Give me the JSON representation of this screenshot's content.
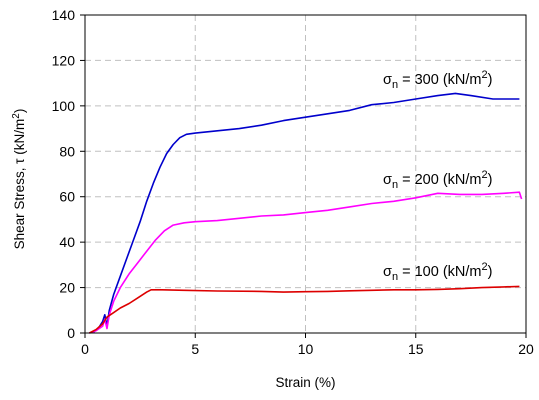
{
  "chart_data": {
    "type": "line",
    "xlabel": "Strain (%)",
    "ylabel_prefix": "Shear Stress, ",
    "ylabel_symbol": "τ",
    "ylabel_unit_open": " (kN/m",
    "ylabel_unit_exp": "2",
    "ylabel_unit_close": ")",
    "xlim": [
      0,
      20
    ],
    "ylim": [
      0,
      140
    ],
    "xticks": [
      0,
      5,
      10,
      15,
      20
    ],
    "yticks": [
      0,
      20,
      40,
      60,
      80,
      100,
      120,
      140
    ],
    "grid": true,
    "series": [
      {
        "color": "#0000cc",
        "label": {
          "sigma": "σ",
          "sub": "n",
          "text": " = 300 (kN/m",
          "sup": "2",
          "close": ")"
        },
        "points": [
          [
            0.2,
            0
          ],
          [
            0.4,
            0.5
          ],
          [
            0.6,
            2
          ],
          [
            0.8,
            5
          ],
          [
            0.9,
            8
          ],
          [
            1.0,
            3
          ],
          [
            1.1,
            10
          ],
          [
            1.3,
            17
          ],
          [
            1.6,
            25
          ],
          [
            1.9,
            33
          ],
          [
            2.2,
            41
          ],
          [
            2.5,
            49
          ],
          [
            2.8,
            58
          ],
          [
            3.1,
            66
          ],
          [
            3.4,
            73
          ],
          [
            3.7,
            79
          ],
          [
            4.0,
            83
          ],
          [
            4.3,
            86
          ],
          [
            4.6,
            87.5
          ],
          [
            5.0,
            88
          ],
          [
            6,
            89
          ],
          [
            7,
            90
          ],
          [
            8,
            91.5
          ],
          [
            9,
            93.5
          ],
          [
            10,
            95
          ],
          [
            11,
            96.5
          ],
          [
            12,
            98
          ],
          [
            13,
            100.5
          ],
          [
            14,
            101.5
          ],
          [
            15,
            103
          ],
          [
            16,
            104.5
          ],
          [
            16.8,
            105.5
          ],
          [
            17.5,
            104.5
          ],
          [
            18.5,
            103
          ],
          [
            19.2,
            103
          ],
          [
            19.7,
            103
          ]
        ]
      },
      {
        "color": "#ff00ff",
        "label": {
          "sigma": "σ",
          "sub": "n",
          "text": " = 200 (kN/m",
          "sup": "2",
          "close": ")"
        },
        "points": [
          [
            0.2,
            0
          ],
          [
            0.5,
            1
          ],
          [
            0.8,
            3
          ],
          [
            0.9,
            6
          ],
          [
            1.0,
            2
          ],
          [
            1.1,
            8
          ],
          [
            1.3,
            14
          ],
          [
            1.6,
            20
          ],
          [
            2.0,
            26
          ],
          [
            2.4,
            31
          ],
          [
            2.8,
            36
          ],
          [
            3.2,
            41
          ],
          [
            3.6,
            45
          ],
          [
            4.0,
            47.5
          ],
          [
            4.5,
            48.5
          ],
          [
            5,
            49
          ],
          [
            6,
            49.5
          ],
          [
            7,
            50.5
          ],
          [
            8,
            51.5
          ],
          [
            9,
            52
          ],
          [
            10,
            53
          ],
          [
            11,
            54
          ],
          [
            12,
            55.5
          ],
          [
            13,
            57
          ],
          [
            14,
            58
          ],
          [
            15,
            59.5
          ],
          [
            16,
            61.5
          ],
          [
            17,
            61
          ],
          [
            18,
            61
          ],
          [
            19,
            61.5
          ],
          [
            19.7,
            62
          ],
          [
            19.8,
            59
          ]
        ]
      },
      {
        "color": "#dd0000",
        "label": {
          "sigma": "σ",
          "sub": "n",
          "text": " = 100 (kN/m",
          "sup": "2",
          "close": ")"
        },
        "points": [
          [
            0.2,
            0
          ],
          [
            0.5,
            1.5
          ],
          [
            0.8,
            4
          ],
          [
            1.0,
            7
          ],
          [
            1.3,
            9
          ],
          [
            1.6,
            11
          ],
          [
            2.0,
            13
          ],
          [
            2.4,
            15.5
          ],
          [
            2.8,
            18
          ],
          [
            3.0,
            19
          ],
          [
            3.5,
            19
          ],
          [
            4.5,
            18.8
          ],
          [
            6,
            18.5
          ],
          [
            8,
            18.3
          ],
          [
            9,
            18
          ],
          [
            10,
            18.2
          ],
          [
            11,
            18.3
          ],
          [
            12,
            18.6
          ],
          [
            13,
            18.8
          ],
          [
            14,
            19
          ],
          [
            15,
            19
          ],
          [
            16,
            19.2
          ],
          [
            17,
            19.5
          ],
          [
            18,
            20
          ],
          [
            19,
            20.3
          ],
          [
            19.7,
            20.5
          ]
        ]
      }
    ]
  }
}
